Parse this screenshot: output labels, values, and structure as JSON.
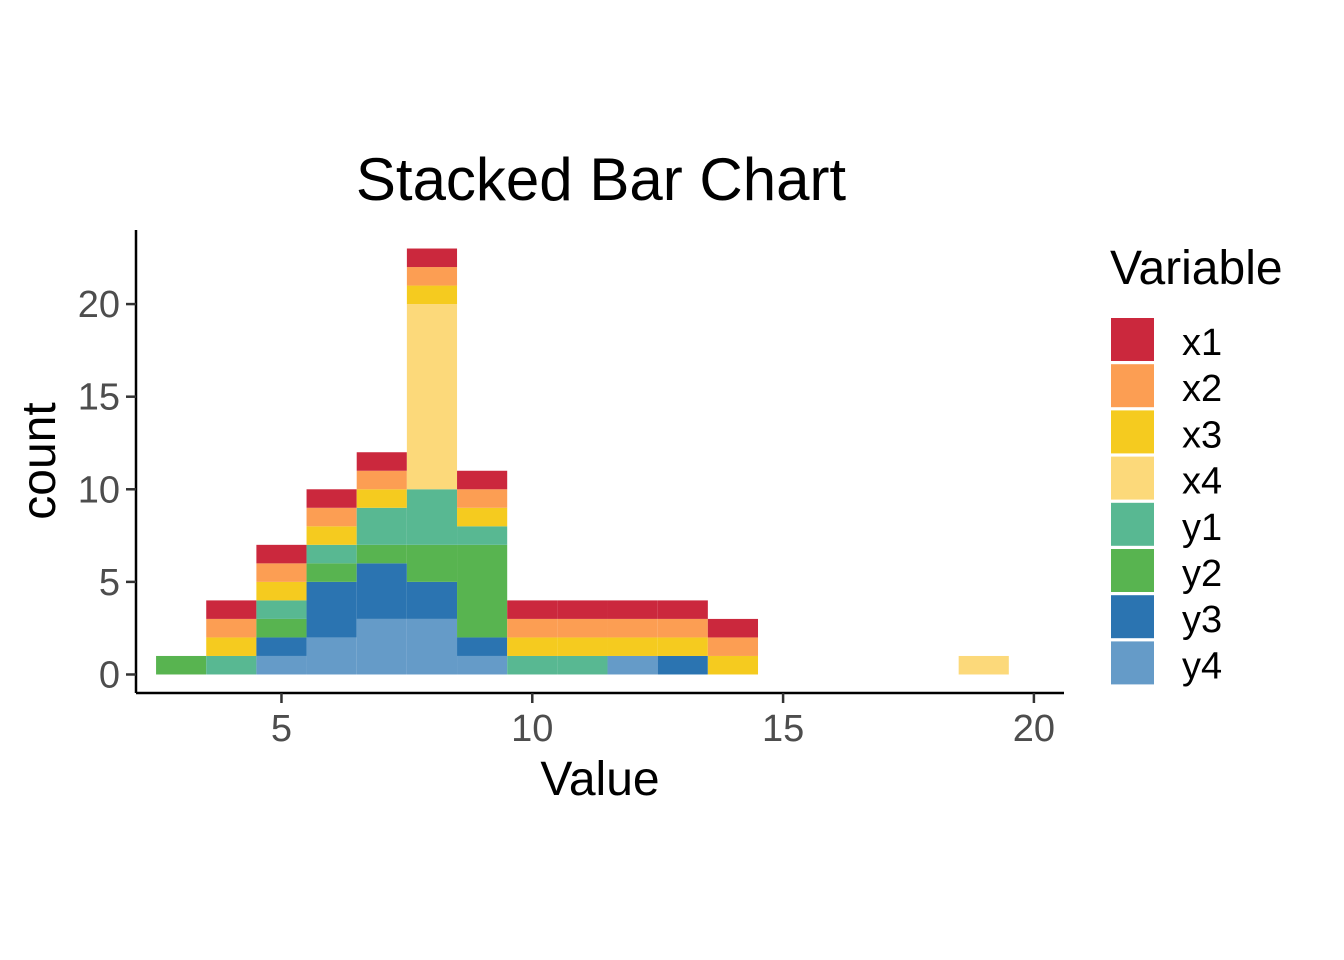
{
  "chart_data": {
    "type": "bar",
    "stacked": true,
    "title": "Stacked Bar Chart",
    "xlabel": "Value",
    "ylabel": "count",
    "xlim": [
      2.1,
      20.6
    ],
    "ylim": [
      -1,
      24
    ],
    "x_ticks": [
      5,
      10,
      15,
      20
    ],
    "y_ticks": [
      0,
      5,
      10,
      15,
      20
    ],
    "bin_width": 1,
    "x": [
      3,
      4,
      5,
      6,
      7,
      8,
      9,
      10,
      11,
      12,
      13,
      14,
      19
    ],
    "grid": false,
    "legend": {
      "title": "Variable",
      "position": "right"
    },
    "series": [
      {
        "name": "y4",
        "color": "#659BC8",
        "values": [
          0,
          0,
          1,
          2,
          3,
          3,
          1,
          0,
          0,
          1,
          0,
          0,
          0
        ]
      },
      {
        "name": "y3",
        "color": "#2B74B1",
        "values": [
          0,
          0,
          1,
          3,
          3,
          2,
          1,
          0,
          0,
          0,
          1,
          0,
          0
        ]
      },
      {
        "name": "y2",
        "color": "#58B450",
        "values": [
          1,
          0,
          1,
          1,
          1,
          2,
          5,
          0,
          0,
          0,
          0,
          0,
          0
        ]
      },
      {
        "name": "y1",
        "color": "#58B892",
        "values": [
          0,
          1,
          1,
          1,
          2,
          3,
          1,
          1,
          1,
          0,
          0,
          0,
          0
        ]
      },
      {
        "name": "x4",
        "color": "#FCD97A",
        "values": [
          0,
          0,
          0,
          0,
          0,
          10,
          0,
          0,
          0,
          0,
          0,
          0,
          1
        ]
      },
      {
        "name": "x3",
        "color": "#F5CB1F",
        "values": [
          0,
          1,
          1,
          1,
          1,
          1,
          1,
          1,
          1,
          1,
          1,
          1,
          0
        ]
      },
      {
        "name": "x2",
        "color": "#FC9E53",
        "values": [
          0,
          1,
          1,
          1,
          1,
          1,
          1,
          1,
          1,
          1,
          1,
          1,
          0
        ]
      },
      {
        "name": "x1",
        "color": "#CB283D",
        "values": [
          0,
          1,
          1,
          1,
          1,
          1,
          1,
          1,
          1,
          1,
          1,
          1,
          0
        ]
      }
    ],
    "legend_order": [
      "x1",
      "x2",
      "x3",
      "x4",
      "y1",
      "y2",
      "y3",
      "y4"
    ]
  }
}
